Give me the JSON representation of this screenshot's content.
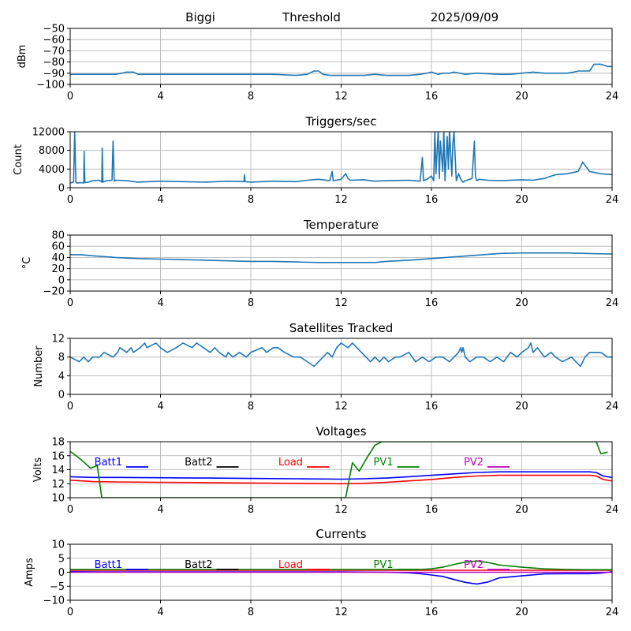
{
  "header": {
    "station": "Biggi",
    "mode": "Threshold",
    "date": "2025/09/09"
  },
  "chart_data": [
    {
      "type": "line",
      "title": "",
      "ylabel": "dBm",
      "xlim": [
        0,
        24
      ],
      "ylim": [
        -100,
        -50
      ],
      "xticks": [
        0,
        4,
        8,
        12,
        16,
        20,
        24
      ],
      "yticks": [
        -100,
        -90,
        -80,
        -70,
        -60,
        -50
      ],
      "grid": true,
      "series": [
        {
          "color": "#1f77b4",
          "x": [
            0,
            1,
            2,
            2.3,
            2.5,
            2.8,
            3,
            4,
            6,
            8,
            9,
            10,
            10.5,
            10.8,
            11,
            11.2,
            11.5,
            12,
            13,
            13.5,
            14,
            15,
            15.5,
            15.8,
            16,
            16.3,
            16.5,
            16.8,
            17,
            17.5,
            18,
            19,
            19.5,
            20,
            20.5,
            21,
            22,
            22.3,
            22.5,
            23,
            23.2,
            23.5,
            23.8,
            24
          ],
          "y": [
            -91,
            -91,
            -91,
            -90,
            -89,
            -89,
            -91,
            -91,
            -91,
            -91,
            -91,
            -92,
            -91,
            -88,
            -88,
            -91,
            -92,
            -92,
            -92,
            -91,
            -92,
            -92,
            -91,
            -90,
            -89,
            -91,
            -90,
            -90,
            -89,
            -91,
            -90,
            -91,
            -91,
            -90,
            -89,
            -90,
            -90,
            -89,
            -88,
            -88,
            -82,
            -82,
            -84,
            -84
          ]
        }
      ]
    },
    {
      "type": "line",
      "title": "Triggers/sec",
      "ylabel": "Count",
      "xlim": [
        0,
        24
      ],
      "ylim": [
        0,
        12000
      ],
      "xticks": [
        0,
        4,
        8,
        12,
        16,
        20,
        24
      ],
      "yticks": [
        0,
        4000,
        8000,
        12000
      ],
      "grid": true,
      "series": [
        {
          "color": "#1f77b4",
          "x": [
            0,
            0.15,
            0.2,
            0.25,
            0.3,
            0.5,
            0.6,
            0.62,
            0.65,
            0.8,
            1.0,
            1.3,
            1.4,
            1.42,
            1.45,
            1.6,
            1.85,
            1.9,
            1.95,
            2.0,
            2.5,
            3,
            4,
            5,
            6,
            7,
            7.7,
            7.72,
            7.75,
            8,
            9,
            10,
            10.5,
            11,
            11.5,
            11.6,
            11.65,
            12,
            12.2,
            12.3,
            12.4,
            13,
            13.5,
            14,
            15,
            15.5,
            15.6,
            15.65,
            15.8,
            16,
            16.1,
            16.15,
            16.2,
            16.3,
            16.35,
            16.4,
            16.5,
            16.55,
            16.6,
            16.7,
            16.75,
            16.8,
            16.9,
            16.95,
            17,
            17.1,
            17.2,
            17.3,
            17.4,
            17.5,
            17.8,
            17.9,
            17.95,
            18.0,
            18.1,
            18.5,
            19,
            20,
            20.5,
            21,
            21.5,
            22,
            22.5,
            22.7,
            23,
            23.5,
            24
          ],
          "y": [
            1000,
            1200,
            12000,
            1200,
            1000,
            1100,
            1000,
            7800,
            1100,
            1200,
            1500,
            1600,
            1200,
            8500,
            1200,
            1500,
            1600,
            10000,
            1400,
            1600,
            1500,
            1200,
            1400,
            1300,
            1200,
            1400,
            1300,
            2800,
            1300,
            1200,
            1400,
            1300,
            1600,
            1800,
            1500,
            3500,
            1500,
            1800,
            3000,
            2000,
            1600,
            1700,
            1400,
            1500,
            1600,
            1400,
            6500,
            1500,
            1800,
            2500,
            1500,
            12500,
            3000,
            12500,
            2000,
            10000,
            3500,
            12500,
            1500,
            11000,
            4000,
            12500,
            2500,
            9500,
            12000,
            1500,
            3000,
            1800,
            1200,
            1500,
            2000,
            10000,
            2500,
            1500,
            1800,
            1600,
            1500,
            1700,
            1600,
            2000,
            2800,
            3000,
            3500,
            5500,
            3500,
            3000,
            2800
          ]
        }
      ]
    },
    {
      "type": "line",
      "title": "Temperature",
      "ylabel": "°C",
      "xlim": [
        0,
        24
      ],
      "ylim": [
        -20,
        80
      ],
      "xticks": [
        0,
        4,
        8,
        12,
        16,
        20,
        24
      ],
      "yticks": [
        -20,
        0,
        20,
        40,
        60,
        80
      ],
      "grid": true,
      "series": [
        {
          "color": "#1f77b4",
          "x": [
            0,
            0.5,
            1,
            2,
            3,
            4,
            5,
            6,
            7,
            8,
            9,
            10,
            11,
            12,
            13,
            13.5,
            14,
            15,
            16,
            17,
            18,
            19,
            20,
            21,
            22,
            23,
            24
          ],
          "y": [
            45,
            45,
            43,
            40,
            38,
            37,
            36,
            35,
            34,
            33,
            33,
            32,
            31,
            31,
            31,
            31,
            33,
            35,
            38,
            41,
            44,
            47,
            48,
            48,
            48,
            47,
            46
          ]
        }
      ]
    },
    {
      "type": "line",
      "title": "Satellites Tracked",
      "ylabel": "Number",
      "xlim": [
        0,
        24
      ],
      "ylim": [
        0,
        12
      ],
      "xticks": [
        0,
        4,
        8,
        12,
        16,
        20,
        24
      ],
      "yticks": [
        0,
        4,
        8,
        12
      ],
      "grid": true,
      "series": [
        {
          "color": "#1f77b4",
          "x": [
            0,
            0.4,
            0.6,
            0.8,
            1.0,
            1.3,
            1.5,
            1.9,
            2.1,
            2.2,
            2.5,
            2.7,
            2.8,
            3.1,
            3.3,
            3.4,
            3.8,
            4.0,
            4.3,
            4.7,
            5.0,
            5.4,
            5.6,
            5.9,
            6.2,
            6.4,
            6.6,
            6.9,
            7.0,
            7.2,
            7.5,
            7.8,
            8.0,
            8.5,
            8.7,
            9.0,
            9.2,
            9.5,
            9.9,
            10.2,
            10.5,
            10.8,
            11.2,
            11.4,
            11.6,
            11.8,
            12.0,
            12.3,
            12.5,
            12.7,
            12.9,
            13.1,
            13.3,
            13.5,
            13.7,
            13.9,
            14.1,
            14.4,
            14.6,
            15.0,
            15.3,
            15.6,
            15.9,
            16.2,
            16.5,
            16.8,
            17.0,
            17.2,
            17.3,
            17.35,
            17.4,
            17.5,
            17.7,
            18.0,
            18.3,
            18.6,
            18.9,
            19.2,
            19.5,
            19.8,
            20.0,
            20.3,
            20.4,
            20.5,
            20.7,
            21.0,
            21.3,
            21.5,
            21.8,
            22.2,
            22.4,
            22.6,
            22.8,
            23.0,
            23.2,
            23.5,
            23.8,
            24
          ],
          "y": [
            8,
            7,
            8,
            7,
            8,
            8,
            9,
            8,
            9,
            10,
            9,
            10,
            9,
            10,
            11,
            10,
            11,
            10,
            9,
            10,
            11,
            10,
            11,
            10,
            9,
            10,
            9,
            8,
            9,
            8,
            9,
            8,
            9,
            10,
            9,
            10,
            10,
            9,
            8,
            8,
            7,
            6,
            8,
            9,
            8,
            10,
            11,
            10,
            11,
            10,
            9,
            8,
            7,
            8,
            7,
            8,
            7,
            8,
            8,
            9,
            7,
            8,
            7,
            8,
            8,
            7,
            8,
            9,
            10,
            9,
            10,
            8,
            7,
            8,
            8,
            7,
            8,
            7,
            9,
            8,
            9,
            10,
            11,
            9,
            10,
            8,
            9,
            8,
            7,
            8,
            7,
            6,
            8,
            9,
            9,
            9,
            8,
            8
          ]
        }
      ]
    },
    {
      "type": "line",
      "title": "Voltages",
      "ylabel": "Volts",
      "xlim": [
        0,
        24
      ],
      "ylim": [
        10,
        18
      ],
      "xticks": [
        0,
        4,
        8,
        12,
        16,
        20,
        24
      ],
      "yticks": [
        10,
        12,
        14,
        16,
        18
      ],
      "grid": true,
      "legend": "top",
      "series": [
        {
          "name": "Batt1",
          "color": "#0000ff",
          "x": [
            0,
            1,
            2,
            4,
            6,
            8,
            10,
            12,
            13,
            14,
            15,
            16,
            17,
            18,
            19,
            20,
            21,
            22,
            23,
            23.3,
            23.6,
            24
          ],
          "y": [
            13.0,
            12.9,
            12.9,
            12.85,
            12.8,
            12.75,
            12.7,
            12.65,
            12.7,
            12.8,
            13.0,
            13.2,
            13.4,
            13.6,
            13.7,
            13.7,
            13.7,
            13.7,
            13.7,
            13.6,
            13.1,
            12.9
          ]
        },
        {
          "name": "Batt2",
          "color": "#000000",
          "x": [],
          "y": []
        },
        {
          "name": "Load",
          "color": "#ff0000",
          "x": [
            0,
            1,
            2,
            4,
            6,
            8,
            10,
            12,
            13,
            14,
            15,
            16,
            17,
            18,
            19,
            20,
            21,
            22,
            23,
            23.3,
            23.6,
            24
          ],
          "y": [
            12.5,
            12.3,
            12.25,
            12.2,
            12.15,
            12.1,
            12.05,
            12.0,
            12.05,
            12.2,
            12.4,
            12.6,
            12.9,
            13.1,
            13.2,
            13.2,
            13.2,
            13.2,
            13.2,
            13.1,
            12.6,
            12.4
          ]
        },
        {
          "name": "PV1",
          "color": "#008000",
          "x": [
            0,
            0.3,
            0.6,
            0.9,
            1.2,
            1.4,
            12.2,
            12.5,
            12.8,
            13.2,
            13.5,
            13.8,
            14.0,
            23.0,
            23.3,
            23.5,
            23.8
          ],
          "y": [
            16.6,
            15.9,
            15.1,
            14.2,
            14.6,
            10.0,
            10.0,
            15.0,
            13.8,
            16.0,
            17.5,
            18.0,
            18.0,
            18.0,
            18.0,
            16.3,
            16.5
          ]
        },
        {
          "name": "PV2",
          "color": "#bf00bf",
          "x": [],
          "y": []
        }
      ]
    },
    {
      "type": "line",
      "title": "Currents",
      "ylabel": "Amps",
      "xlim": [
        0,
        24
      ],
      "ylim": [
        -10,
        10
      ],
      "xticks": [
        0,
        4,
        8,
        12,
        16,
        20,
        24
      ],
      "yticks": [
        -10,
        -5,
        0,
        5,
        10
      ],
      "grid": true,
      "legend": "top",
      "series": [
        {
          "name": "Batt1",
          "color": "#0000ff",
          "x": [
            0,
            2,
            4,
            6,
            8,
            10,
            12,
            14,
            15,
            15.5,
            16,
            16.5,
            17,
            17.5,
            18,
            18.5,
            19,
            20,
            21,
            22,
            23,
            23.5,
            24
          ],
          "y": [
            0.2,
            0.1,
            0.1,
            0.1,
            0.1,
            0.1,
            0.1,
            0,
            -0.2,
            -0.5,
            -1.0,
            -1.5,
            -2.6,
            -3.6,
            -4.2,
            -3.5,
            -2.0,
            -1.3,
            -0.6,
            -0.5,
            -0.5,
            -0.3,
            0.2
          ]
        },
        {
          "name": "Batt2",
          "color": "#000000",
          "x": [],
          "y": []
        },
        {
          "name": "Load",
          "color": "#ff0000",
          "x": [
            0,
            4,
            8,
            12,
            16,
            20,
            24
          ],
          "y": [
            0.7,
            0.7,
            0.7,
            0.7,
            0.7,
            0.7,
            0.7
          ]
        },
        {
          "name": "PV1",
          "color": "#008000",
          "x": [
            0,
            2,
            4,
            6,
            8,
            10,
            12,
            14,
            15,
            15.5,
            16,
            16.5,
            17,
            17.5,
            18,
            18.5,
            19,
            20,
            21,
            22,
            23,
            24
          ],
          "y": [
            1.0,
            1.0,
            1.0,
            1.0,
            1.0,
            1.0,
            1.0,
            1.0,
            1.0,
            1.0,
            1.2,
            1.8,
            2.8,
            3.6,
            4.0,
            3.5,
            2.6,
            1.8,
            1.2,
            1.0,
            0.9,
            0.9
          ]
        },
        {
          "name": "PV2",
          "color": "#bf00bf",
          "x": [
            0,
            4,
            8,
            12,
            16,
            20,
            24
          ],
          "y": [
            0.0,
            0.0,
            0.0,
            0.0,
            0.0,
            0.0,
            0.0
          ]
        }
      ]
    }
  ]
}
